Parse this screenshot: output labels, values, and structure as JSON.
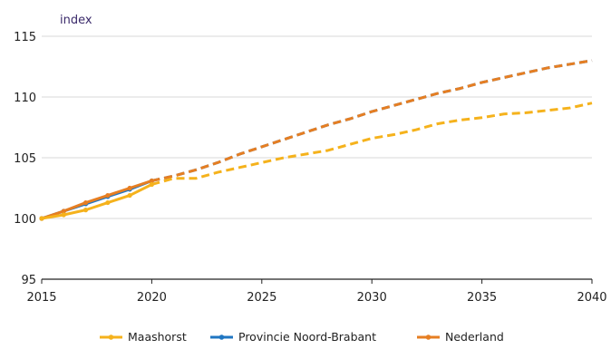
{
  "chart_data": {
    "type": "line",
    "ylabel": "index",
    "xlabel": "",
    "xlim": [
      2015,
      2040
    ],
    "ylim": [
      95,
      115
    ],
    "x_ticks": [
      "2015",
      "2020",
      "2025",
      "2030",
      "2035",
      "2040"
    ],
    "y_ticks": [
      "95",
      "100",
      "105",
      "110",
      "115"
    ],
    "grid": "horizontal",
    "legend_position": "bottom",
    "series": [
      {
        "name": "Maashorst",
        "color": "#f5b21c",
        "x": [
          2015,
          2016,
          2017,
          2018,
          2019,
          2020,
          2021,
          2022,
          2023,
          2024,
          2025,
          2026,
          2027,
          2028,
          2029,
          2030,
          2031,
          2032,
          2033,
          2034,
          2035,
          2036,
          2037,
          2038,
          2039,
          2040
        ],
        "values": [
          100.0,
          100.3,
          100.7,
          101.3,
          101.9,
          102.8,
          103.3,
          103.3,
          103.8,
          104.2,
          104.6,
          105.0,
          105.3,
          105.6,
          106.1,
          106.6,
          106.9,
          107.3,
          107.8,
          108.1,
          108.3,
          108.6,
          108.7,
          108.9,
          109.1,
          109.5
        ]
      },
      {
        "name": "Provincie Noord-Brabant",
        "color": "#1f76c2",
        "x": [
          2015,
          2016,
          2017,
          2018,
          2019,
          2020,
          2021,
          2022,
          2023,
          2024,
          2025,
          2026,
          2027,
          2028,
          2029,
          2030,
          2031,
          2032,
          2033,
          2034,
          2035,
          2036,
          2037,
          2038,
          2039,
          2040
        ],
        "values": [
          100.0,
          100.6,
          101.2,
          101.8,
          102.4,
          103.1,
          103.5,
          104.0,
          104.6,
          105.3,
          105.9,
          106.5,
          107.1,
          107.7,
          108.2,
          108.8,
          109.3,
          109.8,
          110.3,
          110.7,
          111.2,
          111.6,
          112.0,
          112.4,
          112.7,
          113.0
        ]
      },
      {
        "name": "Nederland",
        "color": "#e67e22",
        "x": [
          2015,
          2016,
          2017,
          2018,
          2019,
          2020,
          2021,
          2022,
          2023,
          2024,
          2025,
          2026,
          2027,
          2028,
          2029,
          2030,
          2031,
          2032,
          2033,
          2034,
          2035,
          2036,
          2037,
          2038,
          2039,
          2040
        ],
        "values": [
          100.0,
          100.6,
          101.3,
          101.9,
          102.5,
          103.1,
          103.5,
          104.0,
          104.6,
          105.3,
          105.9,
          106.5,
          107.1,
          107.7,
          108.2,
          108.8,
          109.3,
          109.8,
          110.3,
          110.7,
          111.2,
          111.6,
          112.0,
          112.4,
          112.7,
          113.0
        ]
      }
    ]
  }
}
